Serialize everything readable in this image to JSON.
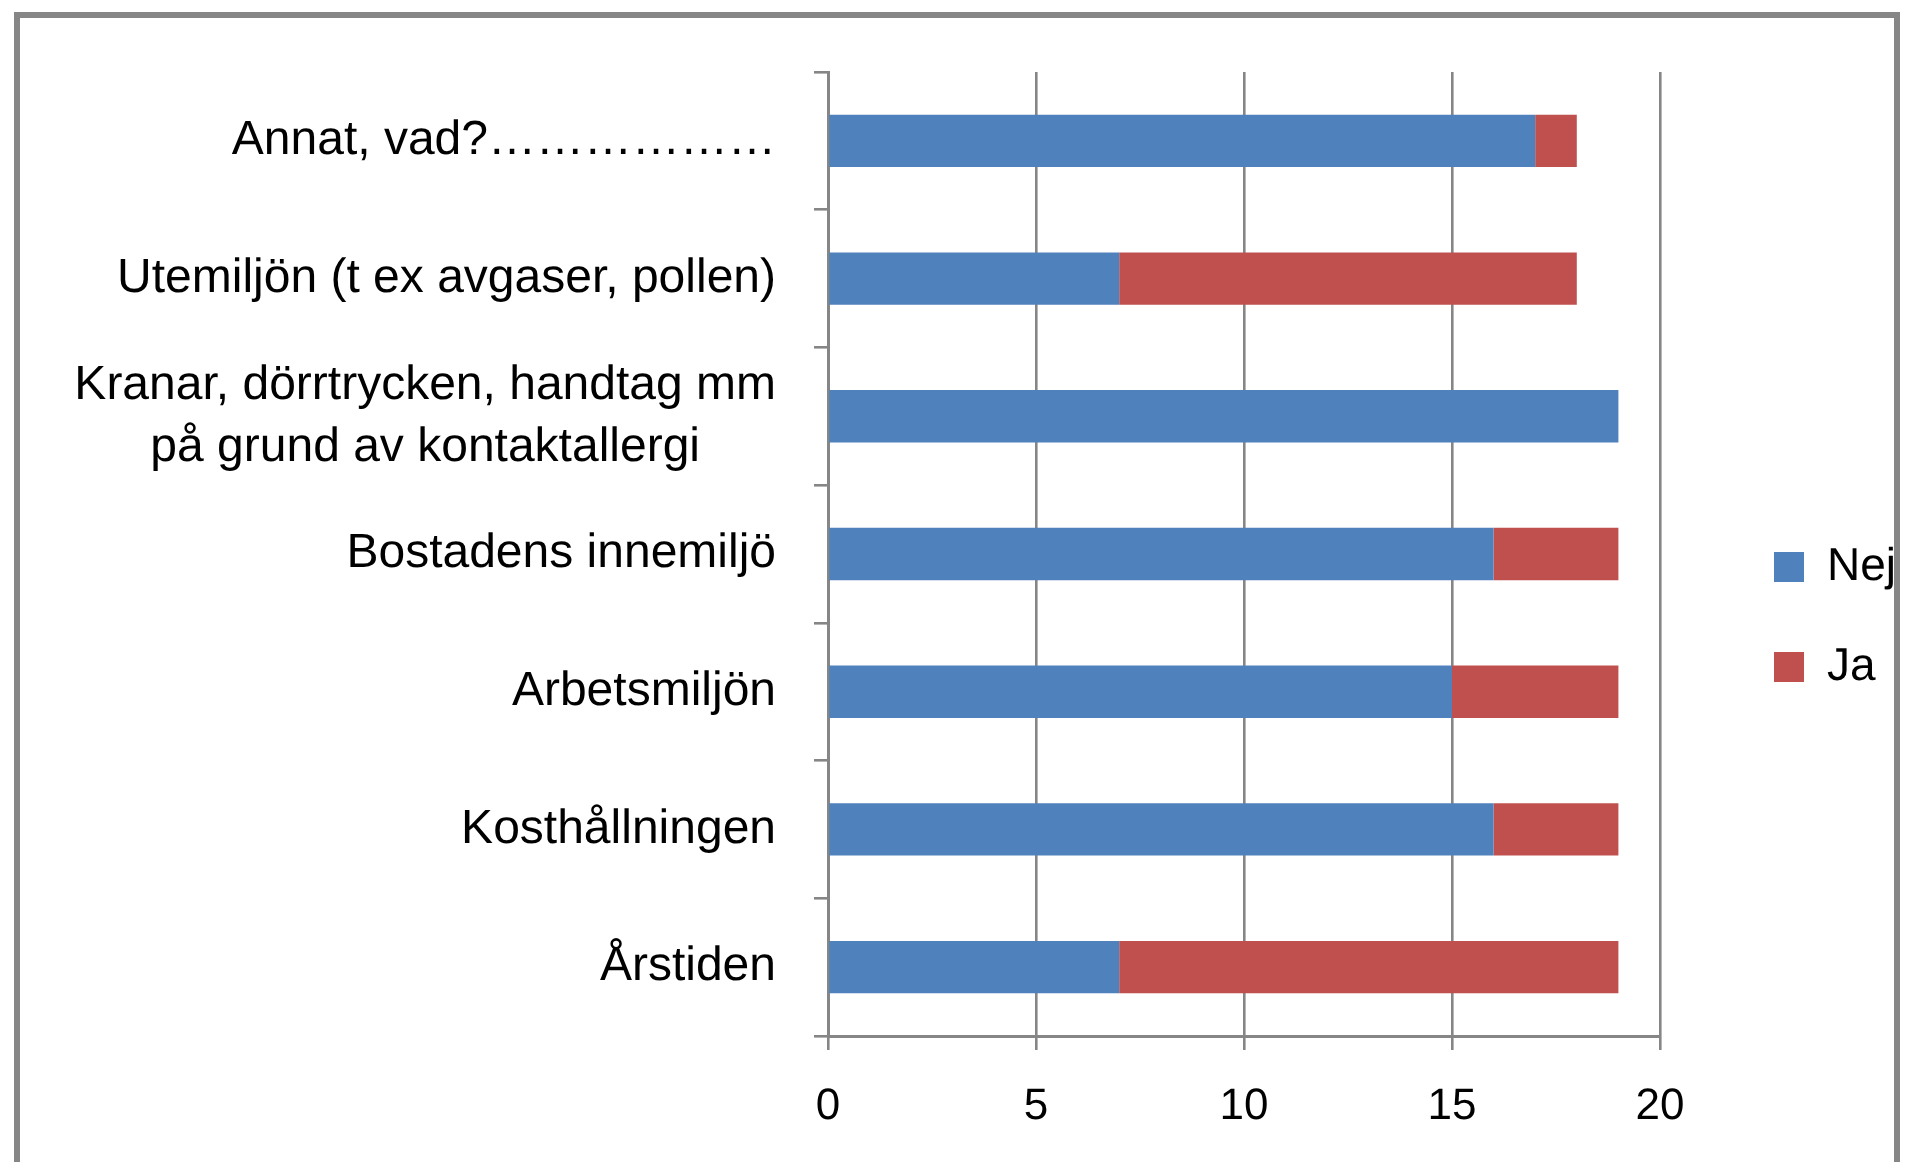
{
  "chart_data": {
    "type": "bar",
    "orientation": "horizontal",
    "stacked": true,
    "categories": [
      "Annat, vad?………………",
      "Utemiljön (t ex avgaser, pollen)",
      "Kranar, dörrtrycken, handtag mm på grund av kontaktallergi",
      "Bostadens innemiljö",
      "Arbetsmiljön",
      "Kosthållningen",
      "Årstiden"
    ],
    "series": [
      {
        "name": "Nej",
        "color": "#4f81bd",
        "values": [
          17,
          7,
          19,
          16,
          15,
          16,
          7
        ]
      },
      {
        "name": "Ja",
        "color": "#c0504d",
        "values": [
          1,
          11,
          0,
          3,
          4,
          3,
          12
        ]
      }
    ],
    "xlim": [
      0,
      20
    ],
    "xticks": [
      0,
      5,
      10,
      15,
      20
    ],
    "grid": "x",
    "legend": "right"
  }
}
